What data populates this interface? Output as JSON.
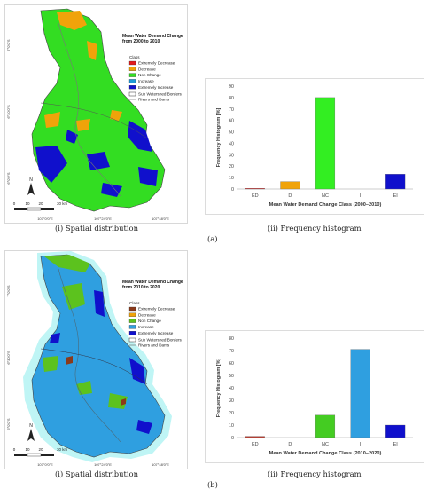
{
  "figure_a": {
    "label": "(a)",
    "map": {
      "caption": "(i) Spatial distribution",
      "legend_title": "Mean Water Demand Change from 2000 to 2010",
      "legend_class_header": "Class",
      "legend_items": [
        {
          "label": "Extremely Decrease",
          "color": "#e31a1c"
        },
        {
          "label": "Decrease",
          "color": "#f0a30a"
        },
        {
          "label": "Non Change",
          "color": "#33dd22"
        },
        {
          "label": "Increase",
          "color": "#1f9ad6"
        },
        {
          "label": "Extremely Increase",
          "color": "#1010cc"
        }
      ],
      "legend_borders": "Sub Watershed Borders",
      "legend_rivers": "Rivers and Dams",
      "scale_ticks": [
        "0",
        "10",
        "20",
        "30 km"
      ],
      "lon_ticks": [
        "107°0'0\"E",
        "107°24'0\"E",
        "107°48'0\"E"
      ],
      "lat_ticks": [
        "6°0'0\"S",
        "6°30'0\"S",
        "7°0'0\"S"
      ],
      "north_label": "N"
    },
    "chart_data": {
      "type": "bar",
      "categories": [
        "ED",
        "D",
        "NC",
        "I",
        "EI"
      ],
      "values": [
        0.5,
        6.5,
        80,
        0,
        13
      ],
      "colors": [
        "#e31a1c",
        "#f0a30a",
        "#33ee22",
        "#1f9ad6",
        "#1010cc"
      ],
      "xlabel": "Mean Water Demand Change Class (2000–2010)",
      "ylabel": "Frequency Histogram [%]",
      "ylim": [
        0,
        90
      ],
      "yticks": [
        0,
        10,
        20,
        30,
        40,
        50,
        60,
        70,
        80,
        90
      ],
      "grid": false,
      "caption": "(ii) Frequency histogram"
    }
  },
  "figure_b": {
    "label": "(b)",
    "map": {
      "caption": "(i) Spatial distribution",
      "legend_title": "Mean Water Demand Change from 2010 to 2020",
      "legend_class_header": "Class",
      "legend_items": [
        {
          "label": "Extremely Decrease",
          "color": "#8b3a1a"
        },
        {
          "label": "Decrease",
          "color": "#f0a30a"
        },
        {
          "label": "Non Change",
          "color": "#5cc21e"
        },
        {
          "label": "Increase",
          "color": "#2f9fe0"
        },
        {
          "label": "Extremely Increase",
          "color": "#1010cc"
        }
      ],
      "legend_borders": "Sub Watershed Borders",
      "legend_rivers": "Rivers and Dams",
      "scale_ticks": [
        "0",
        "10",
        "20",
        "30 km"
      ],
      "lon_ticks": [
        "107°0'0\"E",
        "107°24'0\"E",
        "107°48'0\"E"
      ],
      "lat_ticks": [
        "6°0'0\"S",
        "6°30'0\"S",
        "7°0'0\"S"
      ],
      "north_label": "N"
    },
    "chart_data": {
      "type": "bar",
      "categories": [
        "ED",
        "D",
        "NC",
        "I",
        "EI"
      ],
      "values": [
        1,
        0,
        18,
        71,
        10
      ],
      "colors": [
        "#c0392b",
        "#f0a30a",
        "#44cc22",
        "#2f9fe0",
        "#1010cc"
      ],
      "xlabel": "Mean Water Demand Change Class (2010–2020)",
      "ylabel": "Frequency Histogram [%]",
      "ylim": [
        0,
        80
      ],
      "yticks": [
        0,
        10,
        20,
        30,
        40,
        50,
        60,
        70,
        80
      ],
      "grid": false,
      "caption": "(ii) Frequency histogram"
    }
  }
}
